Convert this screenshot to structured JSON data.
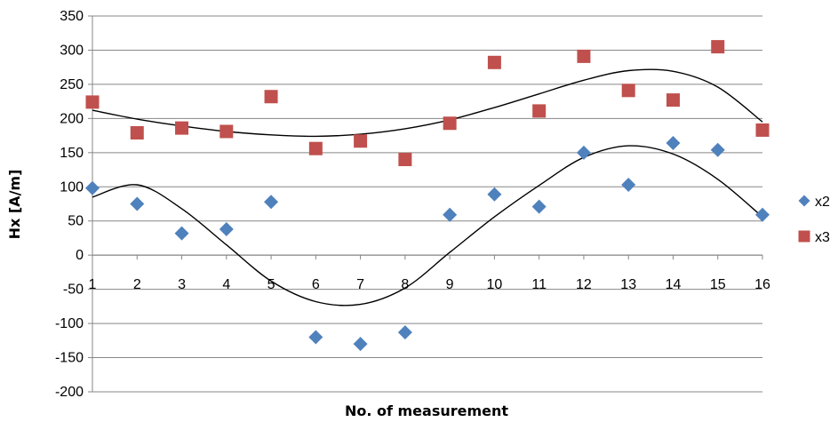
{
  "chart_data": {
    "type": "scatter",
    "title": "",
    "xlabel": "No. of measurement",
    "ylabel": "Hx [A/m]",
    "x": [
      1,
      2,
      3,
      4,
      5,
      6,
      7,
      8,
      9,
      10,
      11,
      12,
      13,
      14,
      15,
      16
    ],
    "xlim": [
      1,
      16
    ],
    "ylim": [
      -200,
      350
    ],
    "y_ticks": [
      -200,
      -150,
      -100,
      -50,
      0,
      50,
      100,
      150,
      200,
      250,
      300,
      350
    ],
    "x_ticks": [
      1,
      2,
      3,
      4,
      5,
      6,
      7,
      8,
      9,
      10,
      11,
      12,
      13,
      14,
      15,
      16
    ],
    "grid": true,
    "legend_position": "right",
    "series": [
      {
        "name": "x2",
        "marker": "diamond",
        "color": "#4F81BD",
        "values": [
          98,
          75,
          32,
          38,
          78,
          -120,
          -130,
          -113,
          59,
          89,
          71,
          150,
          103,
          164,
          154,
          59
        ],
        "trendline": [
          85,
          103,
          68,
          15,
          -38,
          -68,
          -72,
          -48,
          4,
          56,
          102,
          143,
          160,
          148,
          111,
          56
        ]
      },
      {
        "name": "x3",
        "marker": "square",
        "color": "#C0504D",
        "values": [
          224,
          179,
          186,
          181,
          232,
          156,
          167,
          140,
          193,
          282,
          211,
          291,
          241,
          227,
          305,
          183
        ],
        "trendline": [
          212,
          199,
          189,
          181,
          176,
          174,
          177,
          185,
          198,
          216,
          236,
          256,
          270,
          269,
          246,
          195
        ]
      }
    ]
  }
}
